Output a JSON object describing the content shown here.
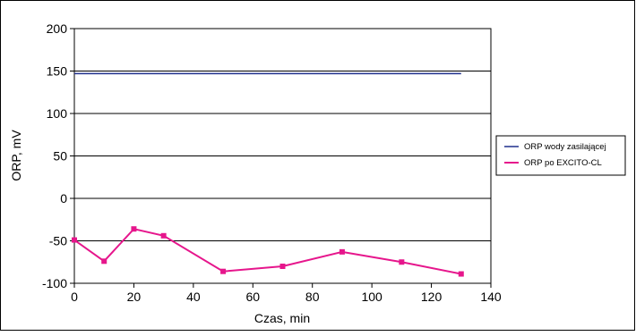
{
  "chart_data": {
    "type": "line",
    "title": "",
    "xlabel": "Czas, min",
    "ylabel": "ORP, mV",
    "xlim": [
      0,
      140
    ],
    "ylim": [
      -100,
      200
    ],
    "x_ticks": [
      0,
      20,
      40,
      60,
      80,
      100,
      120,
      140
    ],
    "y_ticks": [
      200,
      150,
      100,
      50,
      0,
      -50,
      -100
    ],
    "grid": "horizontal",
    "legend_position": "right",
    "series": [
      {
        "name": "ORP wody zasilającej",
        "color": "#1f2f8c",
        "markers": false,
        "points": [
          [
            0,
            147
          ],
          [
            130,
            147
          ]
        ]
      },
      {
        "name": "ORP po EXCITO-CL",
        "color": "#e6168c",
        "markers": true,
        "points": [
          [
            0,
            -49
          ],
          [
            10,
            -74
          ],
          [
            20,
            -36
          ],
          [
            30,
            -44
          ],
          [
            50,
            -86
          ],
          [
            70,
            -80
          ],
          [
            90,
            -63
          ],
          [
            110,
            -75
          ],
          [
            130,
            -89
          ]
        ]
      }
    ]
  }
}
